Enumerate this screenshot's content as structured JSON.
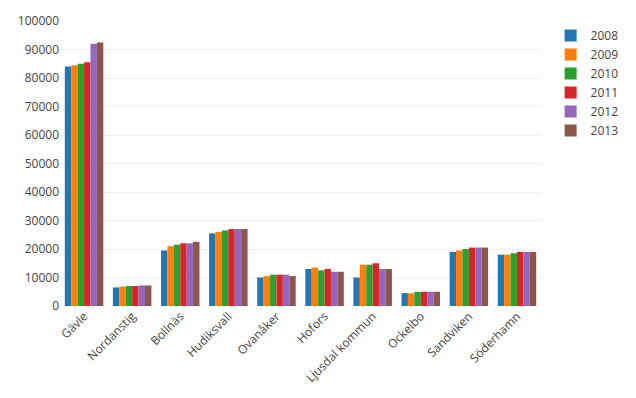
{
  "chart_data": {
    "type": "bar",
    "categories": [
      "Gävle",
      "Nordanstig",
      "Bollnäs",
      "Hudiksvall",
      "Ovanåker",
      "Hofors",
      "Ljusdal kommun",
      "Ockelbo",
      "Sandviken",
      "Söderhamn"
    ],
    "series": [
      {
        "name": "2008",
        "values": [
          84000,
          6500,
          19500,
          25500,
          10000,
          13000,
          10000,
          4500,
          19000,
          18000
        ]
      },
      {
        "name": "2009",
        "values": [
          84500,
          6800,
          21000,
          26000,
          10500,
          13500,
          14500,
          4500,
          19500,
          18000
        ]
      },
      {
        "name": "2010",
        "values": [
          85000,
          7000,
          21500,
          26500,
          11000,
          12500,
          14500,
          5000,
          20000,
          18500
        ]
      },
      {
        "name": "2011",
        "values": [
          85500,
          7000,
          22000,
          27000,
          11000,
          13000,
          15000,
          5000,
          20500,
          19000
        ]
      },
      {
        "name": "2012",
        "values": [
          92000,
          7200,
          22000,
          27000,
          11000,
          12000,
          13000,
          5000,
          20500,
          19000
        ]
      },
      {
        "name": "2013",
        "values": [
          92500,
          7200,
          22500,
          27000,
          10500,
          12000,
          13000,
          5000,
          20500,
          19000
        ]
      }
    ],
    "ylim": [
      0,
      100000
    ],
    "yticks": [
      0,
      10000,
      20000,
      30000,
      40000,
      50000,
      60000,
      70000,
      80000,
      90000,
      100000
    ],
    "grid": true,
    "legend": "right"
  }
}
